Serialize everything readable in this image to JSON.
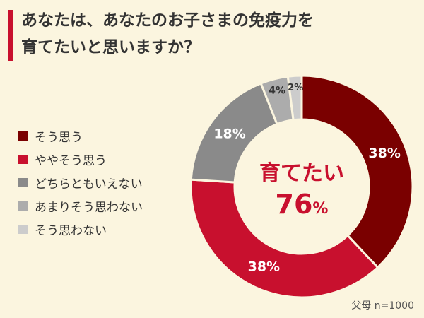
{
  "title_lines": [
    "あなたは、あなたのお子さまの免疫力を",
    "育てたいと思いますか？"
  ],
  "footnote": "父母 n=1000",
  "center": {
    "label": "育てたい",
    "value": 76,
    "unit": "%"
  },
  "colors": {
    "background": "#FBF5DF",
    "accent": "#C8102E",
    "center_text": "#C8102E"
  },
  "chart_data": {
    "type": "pie",
    "donut": true,
    "start": "12 o'clock",
    "direction": "clockwise",
    "title": "",
    "categories": [
      "そう思う",
      "ややそう思う",
      "どちらともいえない",
      "あまりそう思わない",
      "そう思わない"
    ],
    "values": [
      38,
      38,
      18,
      4,
      2
    ],
    "labels": [
      "38%",
      "38%",
      "18%",
      "4%",
      "2%"
    ],
    "colors": [
      "#7A0000",
      "#C8102E",
      "#8A8A8A",
      "#ACACAC",
      "#CCCCCC"
    ],
    "legend_position": "left"
  }
}
